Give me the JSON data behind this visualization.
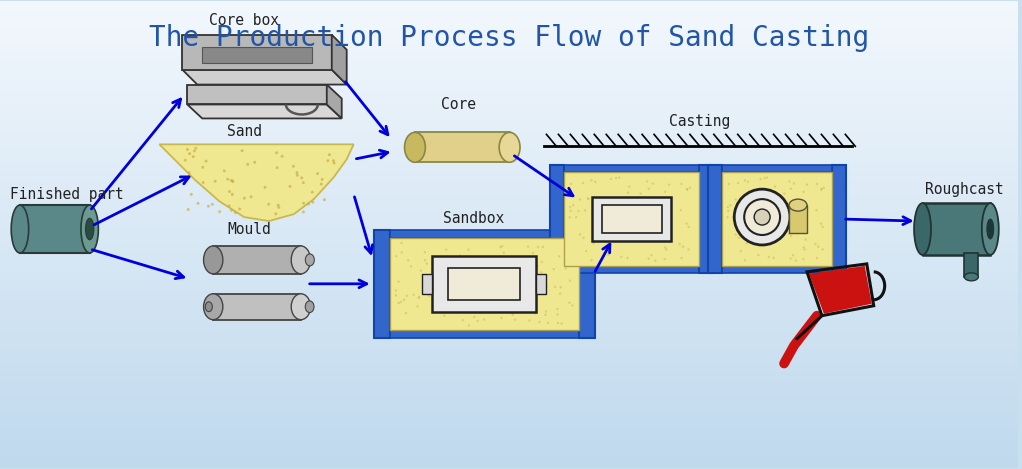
{
  "title": "The Production Process Flow of Sand Casting",
  "title_fontsize": 20,
  "title_color": "#2255aa",
  "arrow_color": "#0000dd",
  "labels": {
    "finished_part": "Finished part",
    "mould": "Mould",
    "sand": "Sand",
    "core_box": "Core box",
    "sandbox": "Sandbox",
    "core": "Core",
    "casting": "Casting",
    "roughcast": "Roughcast"
  },
  "label_fontsize": 10.5,
  "label_color": "#222222",
  "bg_colors": [
    "#cce0f0",
    "#d8eaf8",
    "#e8f3fc",
    "#f0f8ff"
  ],
  "sandbox_yellow": "#f0e8a0",
  "sandbox_blue": "#3366cc",
  "sand_color": "#f0e890",
  "mould_gray": "#b8b8b8",
  "core_tan": "#d8c870"
}
